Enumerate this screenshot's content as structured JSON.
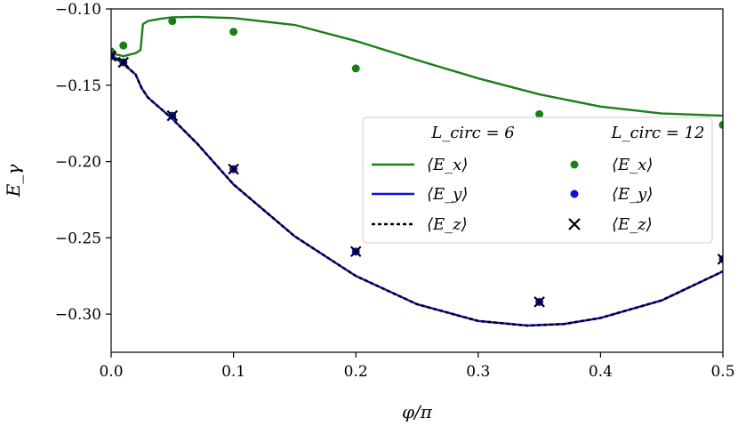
{
  "chart_data": {
    "type": "line",
    "xlabel": "φ/π",
    "ylabel": "E_γ",
    "xlim": [
      0.0,
      0.5
    ],
    "ylim": [
      -0.325,
      -0.1
    ],
    "xticks": [
      0.0,
      0.1,
      0.2,
      0.3,
      0.4,
      0.5
    ],
    "xtick_labels": [
      "0.0",
      "0.1",
      "0.2",
      "0.3",
      "0.4",
      "0.5"
    ],
    "yticks": [
      -0.1,
      -0.15,
      -0.2,
      -0.25,
      -0.3
    ],
    "ytick_labels": [
      "−0.10",
      "−0.15",
      "−0.20",
      "−0.25",
      "−0.30"
    ],
    "legend": {
      "location": "center-right",
      "col_headers": [
        "L_circ = 6",
        "L_circ = 12"
      ],
      "entries": [
        "⟨E_x⟩",
        "⟨E_y⟩",
        "⟨E_z⟩"
      ]
    },
    "colors": {
      "green": "#1a7f1a",
      "blue": "#1010e0",
      "black": "#000000"
    },
    "series": [
      {
        "name": "⟨E_x⟩ (L_circ = 6)",
        "style": "line",
        "color": "#1a7f1a",
        "x": [
          0.0,
          0.005,
          0.01,
          0.015,
          0.02,
          0.024,
          0.026,
          0.03,
          0.04,
          0.05,
          0.07,
          0.1,
          0.15,
          0.2,
          0.25,
          0.3,
          0.35,
          0.4,
          0.45,
          0.5
        ],
        "y": [
          -0.129,
          -0.13,
          -0.131,
          -0.13,
          -0.129,
          -0.127,
          -0.11,
          -0.108,
          -0.1065,
          -0.1055,
          -0.1052,
          -0.106,
          -0.1105,
          -0.121,
          -0.1335,
          -0.1455,
          -0.156,
          -0.164,
          -0.1685,
          -0.17
        ]
      },
      {
        "name": "⟨E_y⟩ (L_circ = 6)",
        "style": "line",
        "color": "#1010e0",
        "x": [
          0.0,
          0.01,
          0.02,
          0.025,
          0.03,
          0.05,
          0.07,
          0.1,
          0.15,
          0.2,
          0.25,
          0.3,
          0.34,
          0.37,
          0.4,
          0.45,
          0.5
        ],
        "y": [
          -0.13,
          -0.136,
          -0.143,
          -0.152,
          -0.158,
          -0.172,
          -0.188,
          -0.215,
          -0.249,
          -0.275,
          -0.2935,
          -0.3045,
          -0.3075,
          -0.3065,
          -0.3025,
          -0.291,
          -0.272
        ]
      },
      {
        "name": "⟨E_z⟩ (L_circ = 6)",
        "style": "dashed",
        "color": "#000000",
        "x": [
          0.0,
          0.01,
          0.02,
          0.025,
          0.03,
          0.05,
          0.07,
          0.1,
          0.15,
          0.2,
          0.25,
          0.3,
          0.34,
          0.37,
          0.4,
          0.45,
          0.5
        ],
        "y": [
          -0.13,
          -0.136,
          -0.143,
          -0.152,
          -0.158,
          -0.172,
          -0.188,
          -0.215,
          -0.249,
          -0.275,
          -0.2935,
          -0.3045,
          -0.3075,
          -0.3065,
          -0.3025,
          -0.291,
          -0.272
        ]
      },
      {
        "name": "⟨E_x⟩ (L_circ = 12)",
        "style": "dot",
        "color": "#1a7f1a",
        "x": [
          0.0,
          0.01,
          0.05,
          0.1,
          0.2,
          0.35,
          0.5
        ],
        "y": [
          -0.128,
          -0.124,
          -0.108,
          -0.115,
          -0.139,
          -0.169,
          -0.176
        ]
      },
      {
        "name": "⟨E_y⟩ (L_circ = 12)",
        "style": "dot",
        "color": "#1010e0",
        "x": [
          0.0,
          0.01,
          0.05,
          0.1,
          0.2,
          0.35,
          0.5
        ],
        "y": [
          -0.131,
          -0.135,
          -0.17,
          -0.205,
          -0.259,
          -0.292,
          -0.264
        ]
      },
      {
        "name": "⟨E_z⟩ (L_circ = 12)",
        "style": "cross",
        "color": "#000000",
        "x": [
          0.0,
          0.01,
          0.05,
          0.1,
          0.2,
          0.35,
          0.5
        ],
        "y": [
          -0.131,
          -0.135,
          -0.17,
          -0.205,
          -0.259,
          -0.292,
          -0.264
        ]
      }
    ]
  }
}
